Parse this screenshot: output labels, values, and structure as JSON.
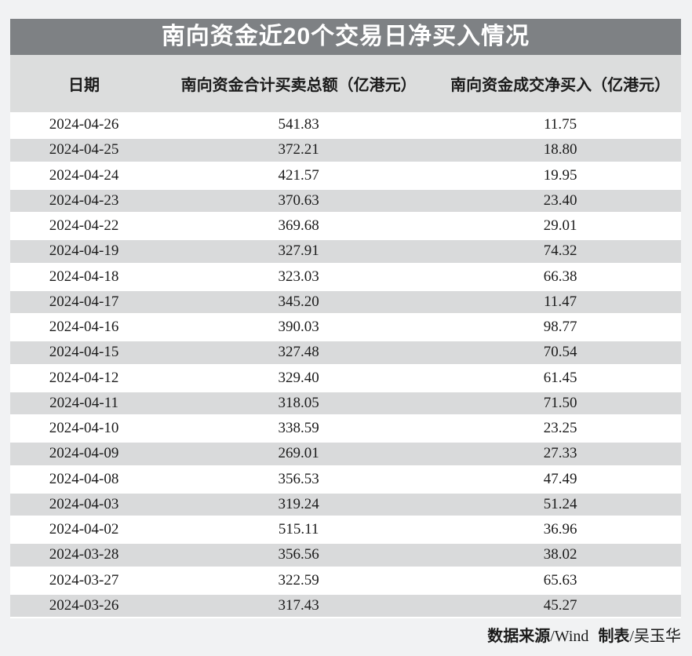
{
  "title": "南向资金近20个交易日净买入情况",
  "columns": [
    "日期",
    "南向资金合计买卖总额（亿港元）",
    "南向资金成交净买入（亿港元）"
  ],
  "rows": [
    [
      "2024-04-26",
      "541.83",
      "11.75"
    ],
    [
      "2024-04-25",
      "372.21",
      "18.80"
    ],
    [
      "2024-04-24",
      "421.57",
      "19.95"
    ],
    [
      "2024-04-23",
      "370.63",
      "23.40"
    ],
    [
      "2024-04-22",
      "369.68",
      "29.01"
    ],
    [
      "2024-04-19",
      "327.91",
      "74.32"
    ],
    [
      "2024-04-18",
      "323.03",
      "66.38"
    ],
    [
      "2024-04-17",
      "345.20",
      "11.47"
    ],
    [
      "2024-04-16",
      "390.03",
      "98.77"
    ],
    [
      "2024-04-15",
      "327.48",
      "70.54"
    ],
    [
      "2024-04-12",
      "329.40",
      "61.45"
    ],
    [
      "2024-04-11",
      "318.05",
      "71.50"
    ],
    [
      "2024-04-10",
      "338.59",
      "23.25"
    ],
    [
      "2024-04-09",
      "269.01",
      "27.33"
    ],
    [
      "2024-04-08",
      "356.53",
      "47.49"
    ],
    [
      "2024-04-03",
      "319.24",
      "51.24"
    ],
    [
      "2024-04-02",
      "515.11",
      "36.96"
    ],
    [
      "2024-03-28",
      "356.56",
      "38.02"
    ],
    [
      "2024-03-27",
      "322.59",
      "65.63"
    ],
    [
      "2024-03-26",
      "317.43",
      "45.27"
    ]
  ],
  "footer": {
    "source_label": "数据来源",
    "source_value": "/Wind",
    "maker_label": "制表",
    "maker_value": "/吴玉华"
  },
  "colors": {
    "page_bg": "#f1f2f3",
    "title_bar_bg": "#7e8184",
    "title_text": "#ffffff",
    "header_bg": "#dcdddd",
    "row_stripe": "#d9dadb",
    "row_plain": "#ffffff",
    "text": "#1b1b1b"
  },
  "chart_data": {
    "type": "table",
    "title": "南向资金近20个交易日净买入情况",
    "columns": [
      "日期",
      "南向资金合计买卖总额（亿港元）",
      "南向资金成交净买入（亿港元）"
    ],
    "categories": [
      "2024-04-26",
      "2024-04-25",
      "2024-04-24",
      "2024-04-23",
      "2024-04-22",
      "2024-04-19",
      "2024-04-18",
      "2024-04-17",
      "2024-04-16",
      "2024-04-15",
      "2024-04-12",
      "2024-04-11",
      "2024-04-10",
      "2024-04-09",
      "2024-04-08",
      "2024-04-03",
      "2024-04-02",
      "2024-03-28",
      "2024-03-27",
      "2024-03-26"
    ],
    "series": [
      {
        "name": "南向资金合计买卖总额（亿港元）",
        "values": [
          541.83,
          372.21,
          421.57,
          370.63,
          369.68,
          327.91,
          323.03,
          345.2,
          390.03,
          327.48,
          329.4,
          318.05,
          338.59,
          269.01,
          356.53,
          319.24,
          515.11,
          356.56,
          322.59,
          317.43
        ]
      },
      {
        "name": "南向资金成交净买入（亿港元）",
        "values": [
          11.75,
          18.8,
          19.95,
          23.4,
          29.01,
          74.32,
          66.38,
          11.47,
          98.77,
          70.54,
          61.45,
          71.5,
          23.25,
          27.33,
          47.49,
          51.24,
          36.96,
          38.02,
          65.63,
          45.27
        ]
      }
    ],
    "source": "数据来源/Wind",
    "credit": "制表/吴玉华",
    "layout_hints": {
      "striped_rows": true,
      "header_band": true,
      "title_bar": true
    }
  }
}
